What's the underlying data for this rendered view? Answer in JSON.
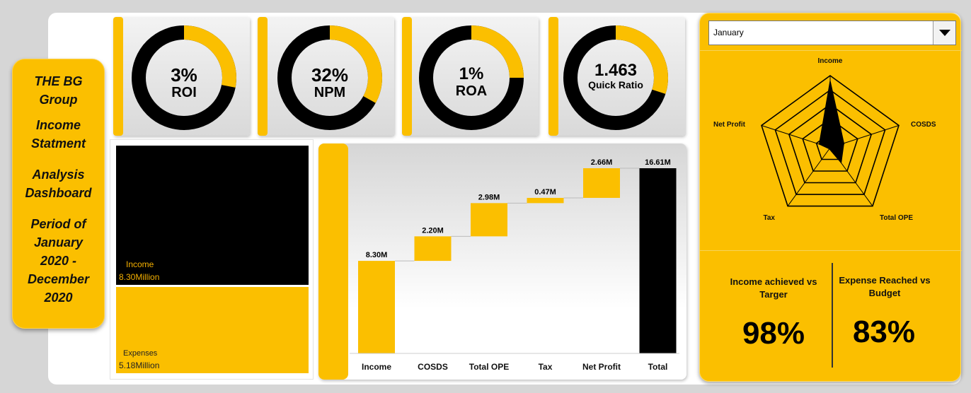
{
  "title": {
    "line1": "THE BG",
    "line2": "Group",
    "line3": "Income",
    "line4": "Statment",
    "line5": "Analysis",
    "line6": "Dashboard",
    "line7": "Period  of",
    "line8": "January",
    "line9": "2020 -",
    "line10": "December",
    "line11": "2020"
  },
  "kpis": [
    {
      "value": "3%",
      "label": "ROI",
      "fraction": 0.28
    },
    {
      "value": "32%",
      "label": "NPM",
      "fraction": 0.33
    },
    {
      "value": "1%",
      "label": "ROA",
      "fraction": 0.25
    },
    {
      "value": "1.463",
      "label": "Quick Ratio",
      "fraction": 0.3
    }
  ],
  "colors": {
    "accent": "#fbbf00",
    "dark": "#000000"
  },
  "treemap": {
    "income_label": "Income",
    "income_value": "8.30Million",
    "expenses_label": "Expenses",
    "expenses_value": "5.18Million"
  },
  "chart_data": {
    "type": "bar",
    "subtype": "waterfall",
    "categories": [
      "Income",
      "COSDS",
      "Total OPE",
      "Tax",
      "Net Profit",
      "Total"
    ],
    "values": [
      8.3,
      2.2,
      2.98,
      0.47,
      2.66,
      16.61
    ],
    "data_labels": [
      "8.30M",
      "2.20M",
      "2.98M",
      "0.47M",
      "2.66M",
      "16.61M"
    ],
    "series_colors": [
      "#fbbf00",
      "#fbbf00",
      "#fbbf00",
      "#fbbf00",
      "#fbbf00",
      "#000000"
    ],
    "title": "",
    "xlabel": "",
    "ylabel": ""
  },
  "filter": {
    "selected": "January"
  },
  "radar": {
    "axes": [
      "Income",
      "COSDS",
      "Total OPE",
      "Tax",
      "Net Profit"
    ],
    "values": [
      0.93,
      0.2,
      0.26,
      0.02,
      0.16
    ]
  },
  "metrics": {
    "income_label": "Income achieved vs Targer",
    "income_value": "98%",
    "expense_label": "Expense Reached vs Budget",
    "expense_value": "83%"
  }
}
